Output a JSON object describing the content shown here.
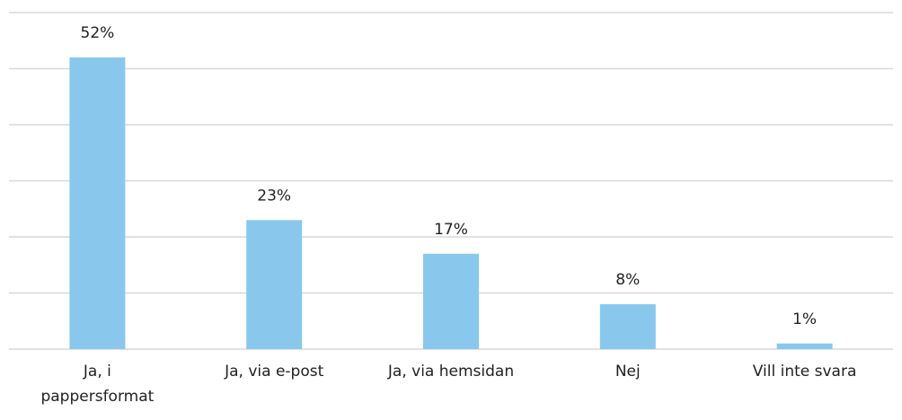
{
  "chart_data": {
    "type": "bar",
    "categories": [
      "Ja, i\npappersformat",
      "Ja, via e-post",
      "Ja, via hemsidan",
      "Nej",
      "Vill inte svara"
    ],
    "values": [
      52,
      23,
      17,
      8,
      1
    ],
    "value_labels": [
      "52%",
      "23%",
      "17%",
      "8%",
      "1%"
    ],
    "color": "#89c8ec",
    "ylim": [
      0,
      60
    ],
    "yticks": [
      0,
      10,
      20,
      30,
      40,
      50,
      60
    ],
    "grid": true
  }
}
